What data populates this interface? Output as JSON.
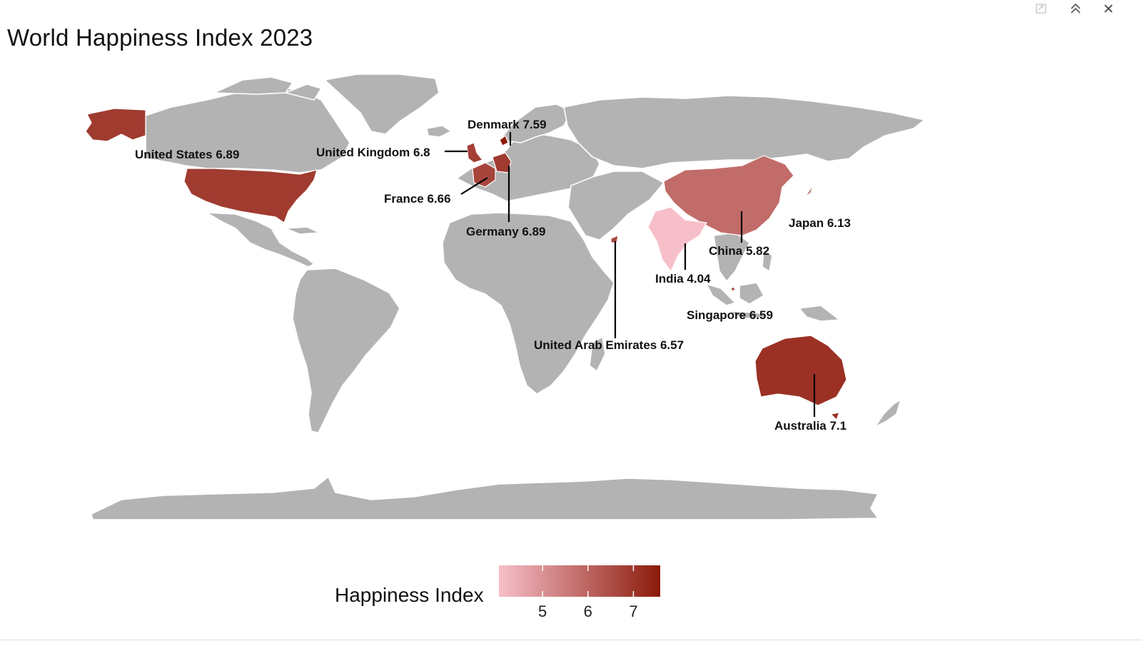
{
  "title": "World Happiness Index 2023",
  "toolbar": {
    "icons": [
      "export-icon",
      "collapse-icon",
      "close-icon"
    ]
  },
  "legend": {
    "title": "Happiness Index",
    "min_color": "#f7bfc9",
    "max_color": "#8b1a0a",
    "range": [
      4.04,
      7.59
    ],
    "ticks": [
      "5",
      "6",
      "7"
    ]
  },
  "colors": {
    "land": "#b3b3b3",
    "border": "#ffffff",
    "leader": "#000000"
  },
  "countries": [
    {
      "name": "United States",
      "value": 6.89,
      "label": "United States 6.89"
    },
    {
      "name": "Denmark",
      "value": 7.59,
      "label": "Denmark 7.59"
    },
    {
      "name": "United Kingdom",
      "value": 6.8,
      "label": "United Kingdom 6.8"
    },
    {
      "name": "France",
      "value": 6.66,
      "label": "France 6.66"
    },
    {
      "name": "Germany",
      "value": 6.89,
      "label": "Germany 6.89"
    },
    {
      "name": "China",
      "value": 5.82,
      "label": "China 5.82"
    },
    {
      "name": "Japan",
      "value": 6.13,
      "label": "Japan 6.13"
    },
    {
      "name": "India",
      "value": 4.04,
      "label": "India 4.04"
    },
    {
      "name": "Singapore",
      "value": 6.59,
      "label": "Singapore 6.59"
    },
    {
      "name": "United Arab Emirates",
      "value": 6.57,
      "label": "United Arab Emirates 6.57"
    },
    {
      "name": "Australia",
      "value": 7.1,
      "label": "Australia 7.1"
    }
  ]
}
